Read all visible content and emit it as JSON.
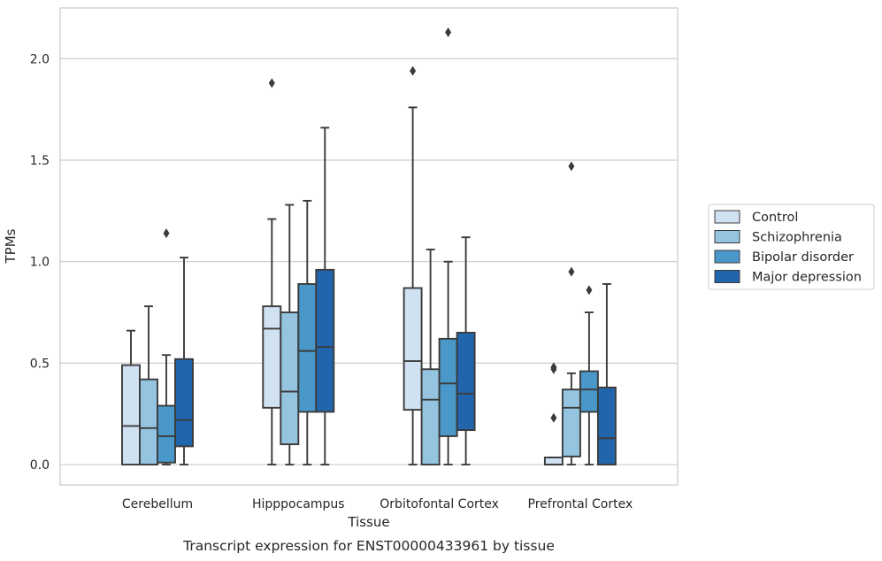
{
  "chart_data": {
    "type": "box",
    "title": "",
    "caption": "Transcript expression for ENST00000433961 by tissue",
    "xlabel": "Tissue",
    "ylabel": "TPMs",
    "ylim": [
      -0.1,
      2.25
    ],
    "yticks": [
      "0.0",
      "0.5",
      "1.0",
      "1.5",
      "2.0"
    ],
    "categories": [
      "Cerebellum",
      "Hipppocampus",
      "Orbitofontal Cortex",
      "Prefrontal Cortex"
    ],
    "grid": "horizontal",
    "legend_position": "right",
    "series": [
      {
        "name": "Control",
        "color": "#d0e1f2",
        "boxes": [
          {
            "min": 0.0,
            "q1": 0.0,
            "median": 0.19,
            "q3": 0.49,
            "max": 0.66,
            "outliers": []
          },
          {
            "min": 0.0,
            "q1": 0.28,
            "median": 0.67,
            "q3": 0.78,
            "max": 1.21,
            "outliers": [
              1.88
            ]
          },
          {
            "min": 0.0,
            "q1": 0.27,
            "median": 0.51,
            "q3": 0.87,
            "max": 1.76,
            "outliers": [
              1.94
            ]
          },
          {
            "min": 0.0,
            "q1": 0.0,
            "median": 0.0,
            "q3": 0.035,
            "max": 0.035,
            "outliers": [
              0.23,
              0.47,
              0.48
            ]
          }
        ]
      },
      {
        "name": "Schizophrenia",
        "color": "#94c4df",
        "boxes": [
          {
            "min": 0.0,
            "q1": 0.0,
            "median": 0.18,
            "q3": 0.42,
            "max": 0.78,
            "outliers": []
          },
          {
            "min": 0.0,
            "q1": 0.1,
            "median": 0.36,
            "q3": 0.75,
            "max": 1.28,
            "outliers": []
          },
          {
            "min": 0.0,
            "q1": 0.0,
            "median": 0.32,
            "q3": 0.47,
            "max": 1.06,
            "outliers": []
          },
          {
            "min": 0.0,
            "q1": 0.04,
            "median": 0.28,
            "q3": 0.37,
            "max": 0.45,
            "outliers": [
              0.95,
              1.47
            ]
          }
        ]
      },
      {
        "name": "Bipolar disorder",
        "color": "#4a98c9",
        "boxes": [
          {
            "min": 0.0,
            "q1": 0.01,
            "median": 0.14,
            "q3": 0.29,
            "max": 0.54,
            "outliers": [
              1.14
            ]
          },
          {
            "min": 0.0,
            "q1": 0.26,
            "median": 0.56,
            "q3": 0.89,
            "max": 1.3,
            "outliers": []
          },
          {
            "min": 0.0,
            "q1": 0.14,
            "median": 0.4,
            "q3": 0.62,
            "max": 1.0,
            "outliers": [
              2.13
            ]
          },
          {
            "min": 0.0,
            "q1": 0.26,
            "median": 0.37,
            "q3": 0.46,
            "max": 0.75,
            "outliers": [
              0.86
            ]
          }
        ]
      },
      {
        "name": "Major depression",
        "color": "#2166ac",
        "boxes": [
          {
            "min": 0.0,
            "q1": 0.09,
            "median": 0.22,
            "q3": 0.52,
            "max": 1.02,
            "outliers": []
          },
          {
            "min": 0.0,
            "q1": 0.26,
            "median": 0.58,
            "q3": 0.96,
            "max": 1.66,
            "outliers": []
          },
          {
            "min": 0.0,
            "q1": 0.17,
            "median": 0.35,
            "q3": 0.65,
            "max": 1.12,
            "outliers": []
          },
          {
            "min": 0.0,
            "q1": 0.0,
            "median": 0.13,
            "q3": 0.38,
            "max": 0.89,
            "outliers": []
          }
        ]
      }
    ]
  }
}
